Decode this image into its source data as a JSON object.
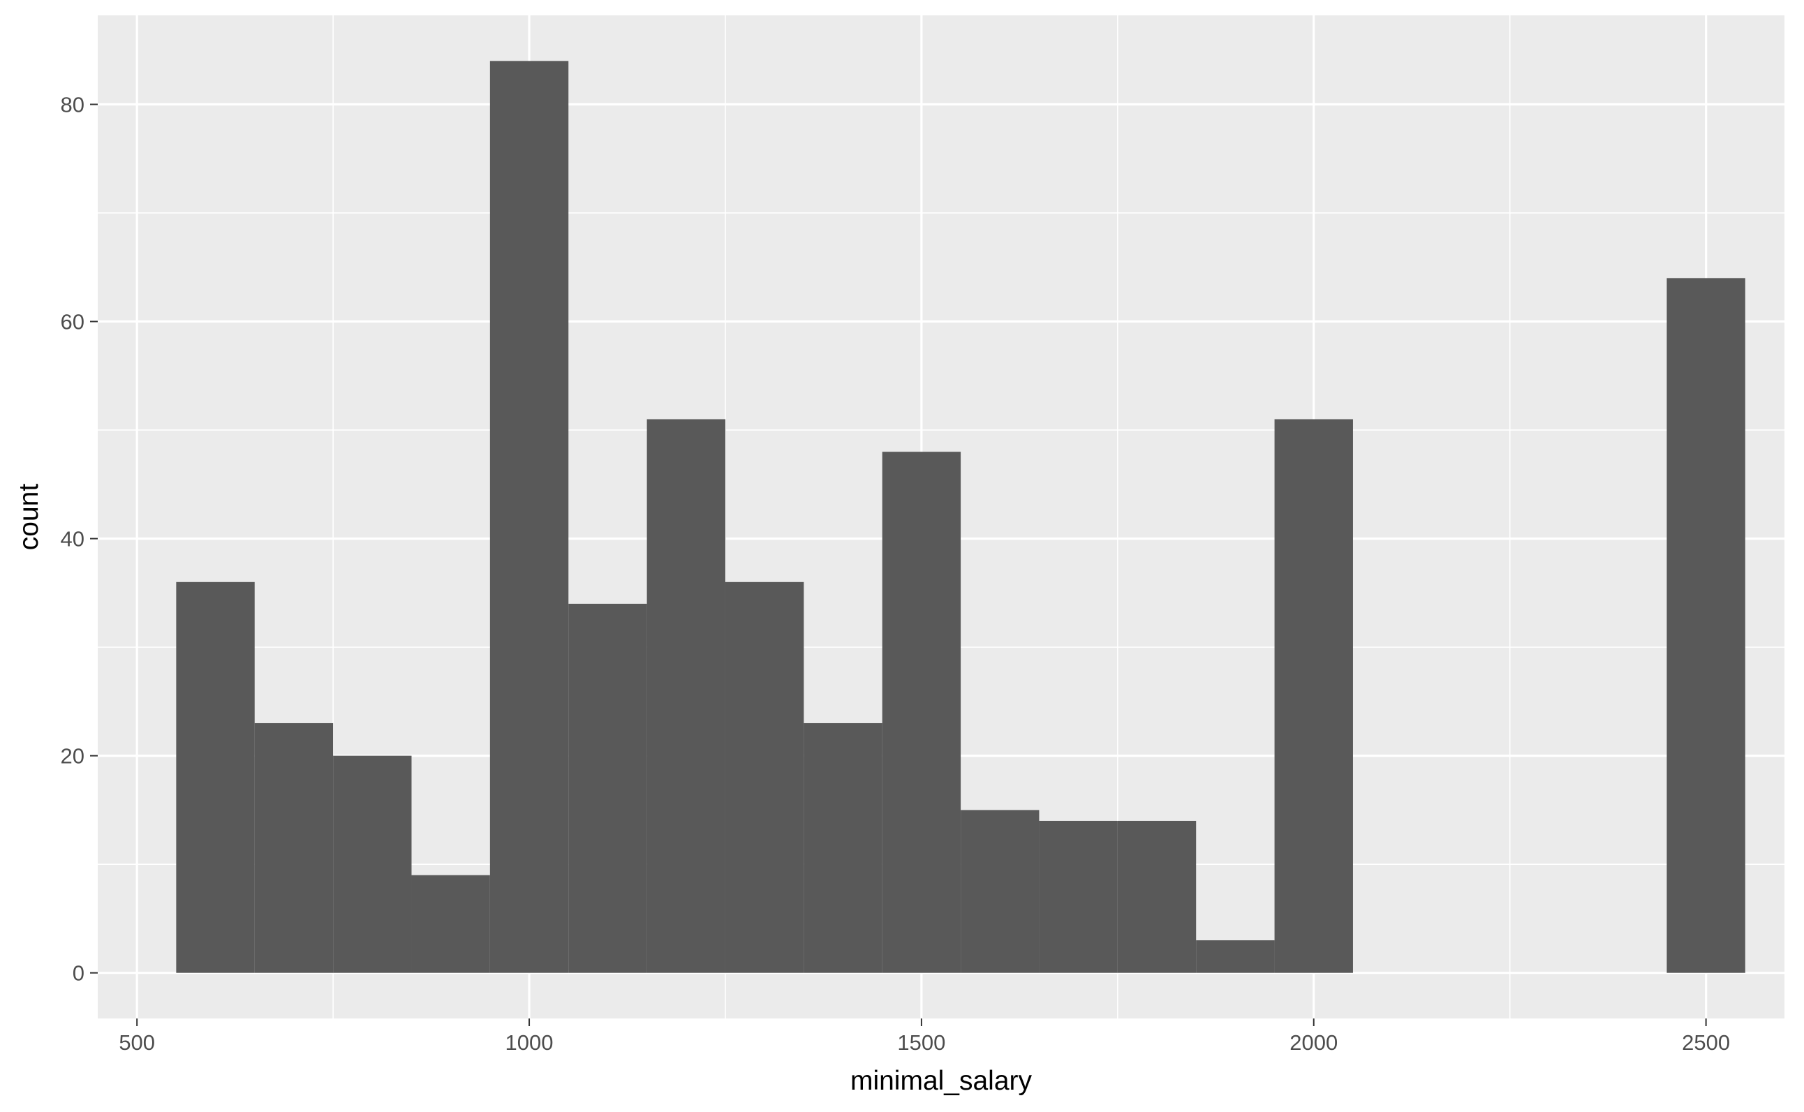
{
  "chart_data": {
    "type": "bar",
    "subtype": "histogram",
    "title": "",
    "xlabel": "minimal_salary",
    "ylabel": "count",
    "bin_width": 100,
    "xlim": [
      450,
      2600
    ],
    "ylim": [
      -4.2,
      88.2
    ],
    "x_ticks": [
      500,
      1000,
      1500,
      2000,
      2500
    ],
    "y_ticks": [
      0,
      20,
      40,
      60,
      80
    ],
    "grid": true,
    "legend": "none",
    "bins": [
      {
        "x": 600,
        "count": 36
      },
      {
        "x": 700,
        "count": 23
      },
      {
        "x": 800,
        "count": 20
      },
      {
        "x": 900,
        "count": 9
      },
      {
        "x": 1000,
        "count": 84
      },
      {
        "x": 1100,
        "count": 34
      },
      {
        "x": 1200,
        "count": 51
      },
      {
        "x": 1300,
        "count": 36
      },
      {
        "x": 1400,
        "count": 23
      },
      {
        "x": 1500,
        "count": 48
      },
      {
        "x": 1600,
        "count": 15
      },
      {
        "x": 1700,
        "count": 14
      },
      {
        "x": 1800,
        "count": 14
      },
      {
        "x": 1900,
        "count": 3
      },
      {
        "x": 2000,
        "count": 51
      },
      {
        "x": 2500,
        "count": 64
      }
    ],
    "colors": {
      "bar_fill": "#595959",
      "panel_background": "#ebebeb",
      "grid_major": "#ffffff",
      "grid_minor": "#f7f7f7",
      "tick_text": "#4d4d4d",
      "tick_mark": "#333333",
      "axis_title": "#000000"
    }
  }
}
